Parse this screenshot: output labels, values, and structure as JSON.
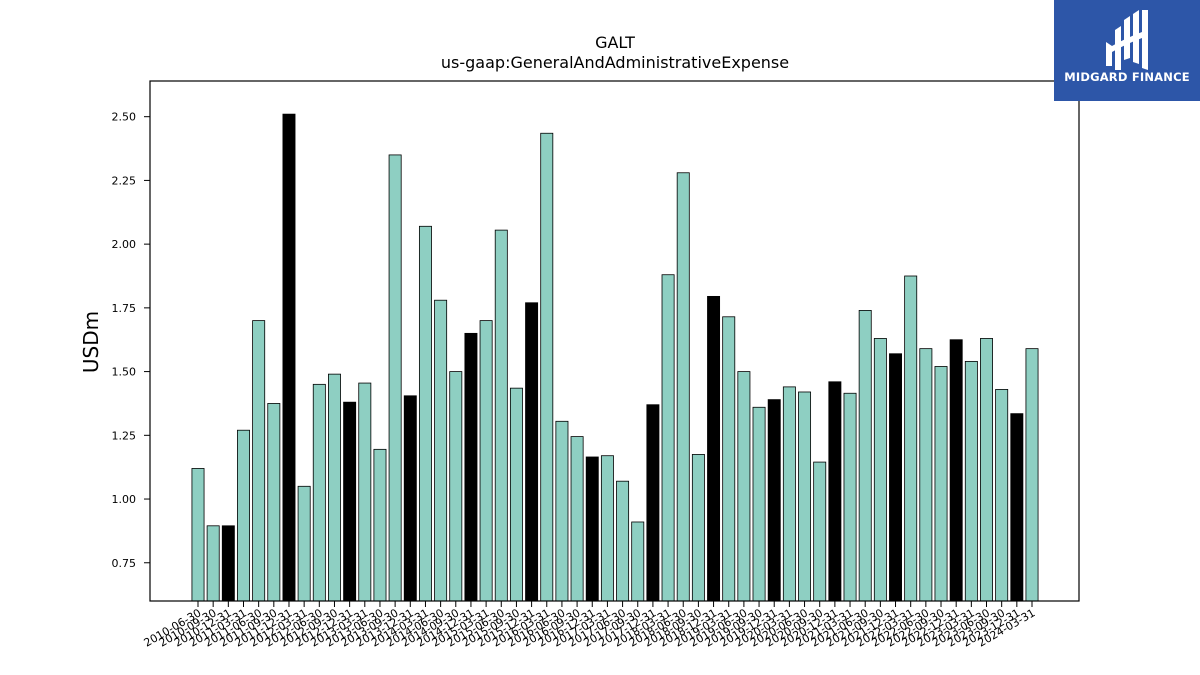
{
  "chart_data": {
    "type": "bar",
    "title": "GALT",
    "subtitle": "us-gaap:GeneralAndAdministrativeExpense",
    "xlabel": "",
    "ylabel": "USDm",
    "ylim": [
      0.6,
      2.64
    ],
    "yticks": [
      0.75,
      1.0,
      1.25,
      1.5,
      1.75,
      2.0,
      2.25,
      2.5
    ],
    "ytick_labels": [
      "0.75",
      "1.00",
      "1.25",
      "1.50",
      "1.75",
      "2.00",
      "2.25",
      "2.50"
    ],
    "grid": false,
    "colors": {
      "quarter": "#8ecfc2",
      "annual": "#000000",
      "edge": "#000000"
    },
    "categories": [
      "2010-06-30",
      "2010-09-30",
      "2010-12-31",
      "2011-03-31",
      "2011-06-30",
      "2011-09-30",
      "2011-12-31",
      "2012-03-31",
      "2012-06-30",
      "2012-09-30",
      "2012-12-31",
      "2013-03-31",
      "2013-06-30",
      "2013-09-30",
      "2013-12-31",
      "2014-03-31",
      "2014-06-30",
      "2014-09-30",
      "2014-12-31",
      "2015-03-31",
      "2015-06-30",
      "2015-09-30",
      "2015-12-31",
      "2016-03-31",
      "2016-06-30",
      "2016-09-30",
      "2016-12-31",
      "2017-03-31",
      "2017-06-30",
      "2017-09-30",
      "2017-12-31",
      "2018-03-31",
      "2018-06-30",
      "2018-09-30",
      "2018-12-31",
      "2019-03-31",
      "2019-06-30",
      "2019-09-30",
      "2019-12-31",
      "2020-03-31",
      "2020-06-30",
      "2020-09-30",
      "2020-12-31",
      "2021-03-31",
      "2021-06-30",
      "2021-09-30",
      "2021-12-31",
      "2022-03-31",
      "2022-06-30",
      "2022-09-30",
      "2022-12-31",
      "2023-03-31",
      "2023-06-30",
      "2023-09-30",
      "2023-12-31",
      "2024-03-31"
    ],
    "values": [
      1.12,
      0.895,
      0.895,
      1.27,
      1.7,
      1.375,
      2.51,
      1.05,
      1.45,
      1.49,
      1.38,
      1.455,
      1.195,
      2.35,
      1.405,
      2.07,
      1.78,
      1.5,
      1.65,
      1.7,
      2.055,
      1.435,
      1.77,
      2.435,
      1.305,
      1.245,
      1.165,
      1.17,
      1.07,
      0.91,
      1.37,
      1.88,
      2.28,
      1.175,
      1.795,
      1.715,
      1.5,
      1.36,
      1.39,
      1.44,
      1.42,
      1.145,
      1.46,
      1.415,
      1.74,
      1.63,
      1.57,
      1.875,
      1.59,
      1.52,
      1.625,
      1.54,
      1.63,
      1.43,
      1.335,
      1.59
    ],
    "annual_flags": [
      0,
      0,
      1,
      0,
      0,
      0,
      1,
      0,
      0,
      0,
      1,
      0,
      0,
      0,
      1,
      0,
      0,
      0,
      1,
      0,
      0,
      0,
      1,
      0,
      0,
      0,
      1,
      0,
      0,
      0,
      1,
      0,
      0,
      0,
      1,
      0,
      0,
      0,
      1,
      0,
      0,
      0,
      1,
      0,
      0,
      0,
      1,
      0,
      0,
      0,
      1,
      0,
      0,
      0,
      1,
      0
    ]
  },
  "logo": {
    "text": "MIDGARD FINANCE",
    "icon": "midgard-logo-icon",
    "color": "#2d56a8"
  }
}
